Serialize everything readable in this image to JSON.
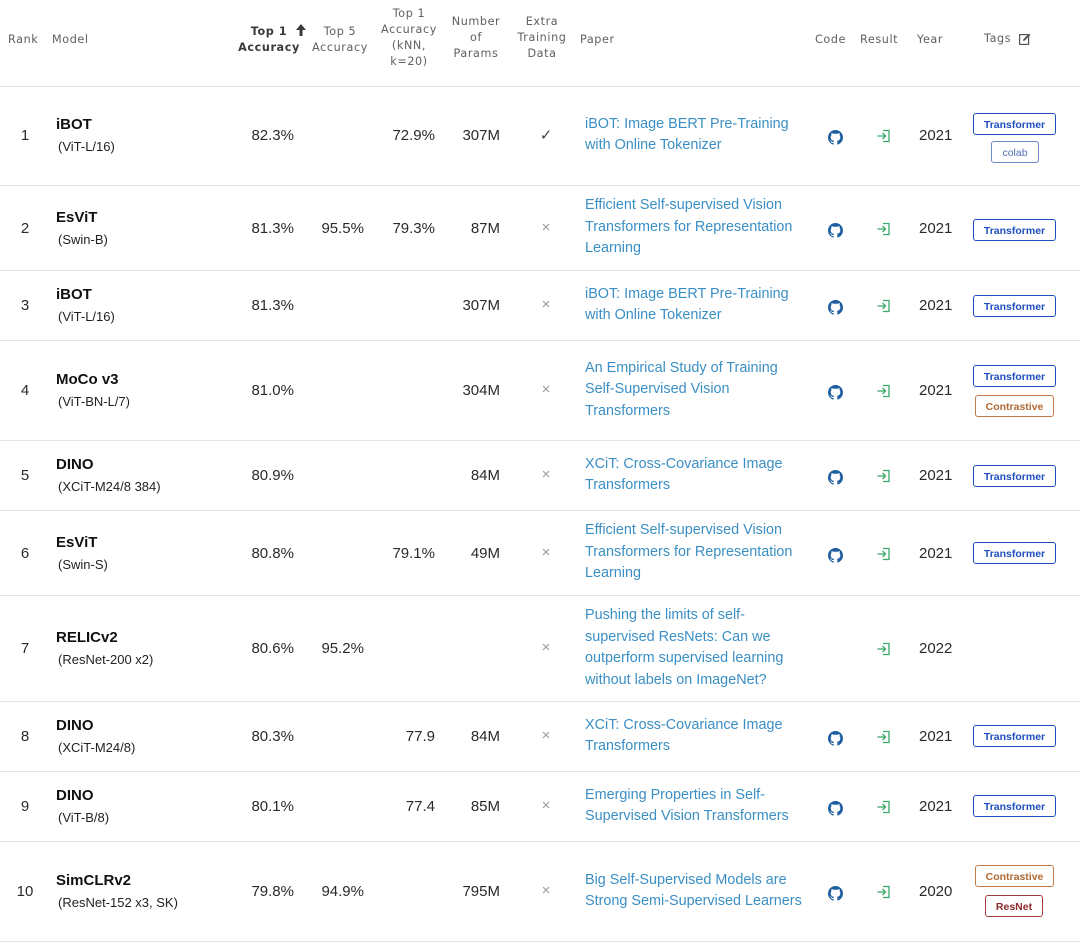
{
  "columns": {
    "rank": "Rank",
    "model": "Model",
    "top1": "Top 1\nAccuracy",
    "top5": "Top 5\nAccuracy",
    "knn": "Top 1\nAccuracy\n(kNN,\nk=20)",
    "params": "Number\nof\nParams",
    "extra": "Extra\nTraining\nData",
    "paper": "Paper",
    "code": "Code",
    "result": "Result",
    "year": "Year",
    "tags": "Tags"
  },
  "icons": {
    "sort": "arrow-up-icon",
    "edit": "edit-icon",
    "code": "github-icon",
    "result": "enter-result-icon"
  },
  "colors": {
    "link": "#3b8fc4",
    "tag_transformer": "#1f4fbf",
    "tag_contrastive": "#c47a45",
    "tag_resnet": "#a43b3b",
    "result_icon": "#3aa86a"
  },
  "rows": [
    {
      "rank": "1",
      "model": "iBOT",
      "variant": "(ViT-L/16)",
      "top1": "82.3%",
      "top5": "",
      "knn": "72.9%",
      "params": "307M",
      "extra": "✓",
      "paper": "iBOT: Image BERT Pre-Training with Online Tokenizer",
      "year": "2021",
      "tags": [
        "Transformer",
        "colab"
      ]
    },
    {
      "rank": "2",
      "model": "EsViT",
      "variant": "(Swin-B)",
      "top1": "81.3%",
      "top5": "95.5%",
      "knn": "79.3%",
      "params": "87M",
      "extra": "×",
      "paper": "Efficient Self-supervised Vision Transformers for Representation Learning",
      "year": "2021",
      "tags": [
        "Transformer"
      ]
    },
    {
      "rank": "3",
      "model": "iBOT",
      "variant": "(ViT-L/16)",
      "top1": "81.3%",
      "top5": "",
      "knn": "",
      "params": "307M",
      "extra": "×",
      "paper": "iBOT: Image BERT Pre-Training with Online Tokenizer",
      "year": "2021",
      "tags": [
        "Transformer"
      ]
    },
    {
      "rank": "4",
      "model": "MoCo v3",
      "variant": "(ViT-BN-L/7)",
      "top1": "81.0%",
      "top5": "",
      "knn": "",
      "params": "304M",
      "extra": "×",
      "paper": "An Empirical Study of Training Self-Supervised Vision Transformers",
      "year": "2021",
      "tags": [
        "Transformer",
        "Contrastive"
      ]
    },
    {
      "rank": "5",
      "model": "DINO",
      "variant": "(XCiT-M24/8 384)",
      "top1": "80.9%",
      "top5": "",
      "knn": "",
      "params": "84M",
      "extra": "×",
      "paper": "XCiT: Cross-Covariance Image Transformers",
      "year": "2021",
      "tags": [
        "Transformer"
      ]
    },
    {
      "rank": "6",
      "model": "EsViT",
      "variant": "(Swin-S)",
      "top1": "80.8%",
      "top5": "",
      "knn": "79.1%",
      "params": "49M",
      "extra": "×",
      "paper": "Efficient Self-supervised Vision Transformers for Representation Learning",
      "year": "2021",
      "tags": [
        "Transformer"
      ]
    },
    {
      "rank": "7",
      "model": "RELICv2",
      "variant": "(ResNet-200 x2)",
      "top1": "80.6%",
      "top5": "95.2%",
      "knn": "",
      "params": "",
      "extra": "×",
      "paper": "Pushing the limits of self-supervised ResNets: Can we outperform supervised learning without labels on ImageNet?",
      "year": "2022",
      "tags": []
    },
    {
      "rank": "8",
      "model": "DINO",
      "variant": "(XCiT-M24/8)",
      "top1": "80.3%",
      "top5": "",
      "knn": "77.9",
      "params": "84M",
      "extra": "×",
      "paper": "XCiT: Cross-Covariance Image Transformers",
      "year": "2021",
      "tags": [
        "Transformer"
      ]
    },
    {
      "rank": "9",
      "model": "DINO",
      "variant": "(ViT-B/8)",
      "top1": "80.1%",
      "top5": "",
      "knn": "77.4",
      "params": "85M",
      "extra": "×",
      "paper": "Emerging Properties in Self-Supervised Vision Transformers",
      "year": "2021",
      "tags": [
        "Transformer"
      ]
    },
    {
      "rank": "10",
      "model": "SimCLRv2",
      "variant": "(ResNet-152 x3, SK)",
      "top1": "79.8%",
      "top5": "94.9%",
      "knn": "",
      "params": "795M",
      "extra": "×",
      "paper": "Big Self-Supervised Models are Strong Semi-Supervised Learners",
      "year": "2020",
      "tags": [
        "Contrastive",
        "ResNet"
      ]
    }
  ]
}
